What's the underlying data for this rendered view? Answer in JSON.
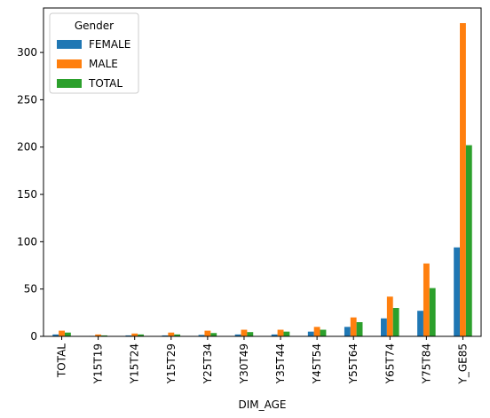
{
  "chart_data": {
    "type": "bar",
    "xlabel": "DIM_AGE",
    "ylabel": "",
    "categories": [
      "TOTAL",
      "Y15T19",
      "Y15T24",
      "Y15T29",
      "Y25T34",
      "Y30T49",
      "Y35T44",
      "Y45T54",
      "Y55T64",
      "Y65T74",
      "Y75T84",
      "Y_GE85"
    ],
    "series": [
      {
        "name": "FEMALE",
        "color": "#1f77b4",
        "values": [
          2,
          0.5,
          1,
          1,
          1.5,
          2,
          2,
          5,
          10,
          19,
          27,
          94
        ]
      },
      {
        "name": "MALE",
        "color": "#ff7f0e",
        "values": [
          6,
          2,
          3,
          4,
          6,
          7,
          7,
          10,
          20,
          42,
          77,
          331
        ]
      },
      {
        "name": "TOTAL",
        "color": "#2ca02c",
        "values": [
          4,
          1,
          2,
          2,
          3.5,
          4.5,
          5,
          7,
          15,
          30,
          51,
          202
        ]
      }
    ],
    "ylim": [
      0,
      347
    ],
    "yticks": [
      0,
      50,
      100,
      150,
      200,
      250,
      300
    ],
    "legend": {
      "title": "Gender",
      "placement": "top-left"
    },
    "grid": false
  }
}
